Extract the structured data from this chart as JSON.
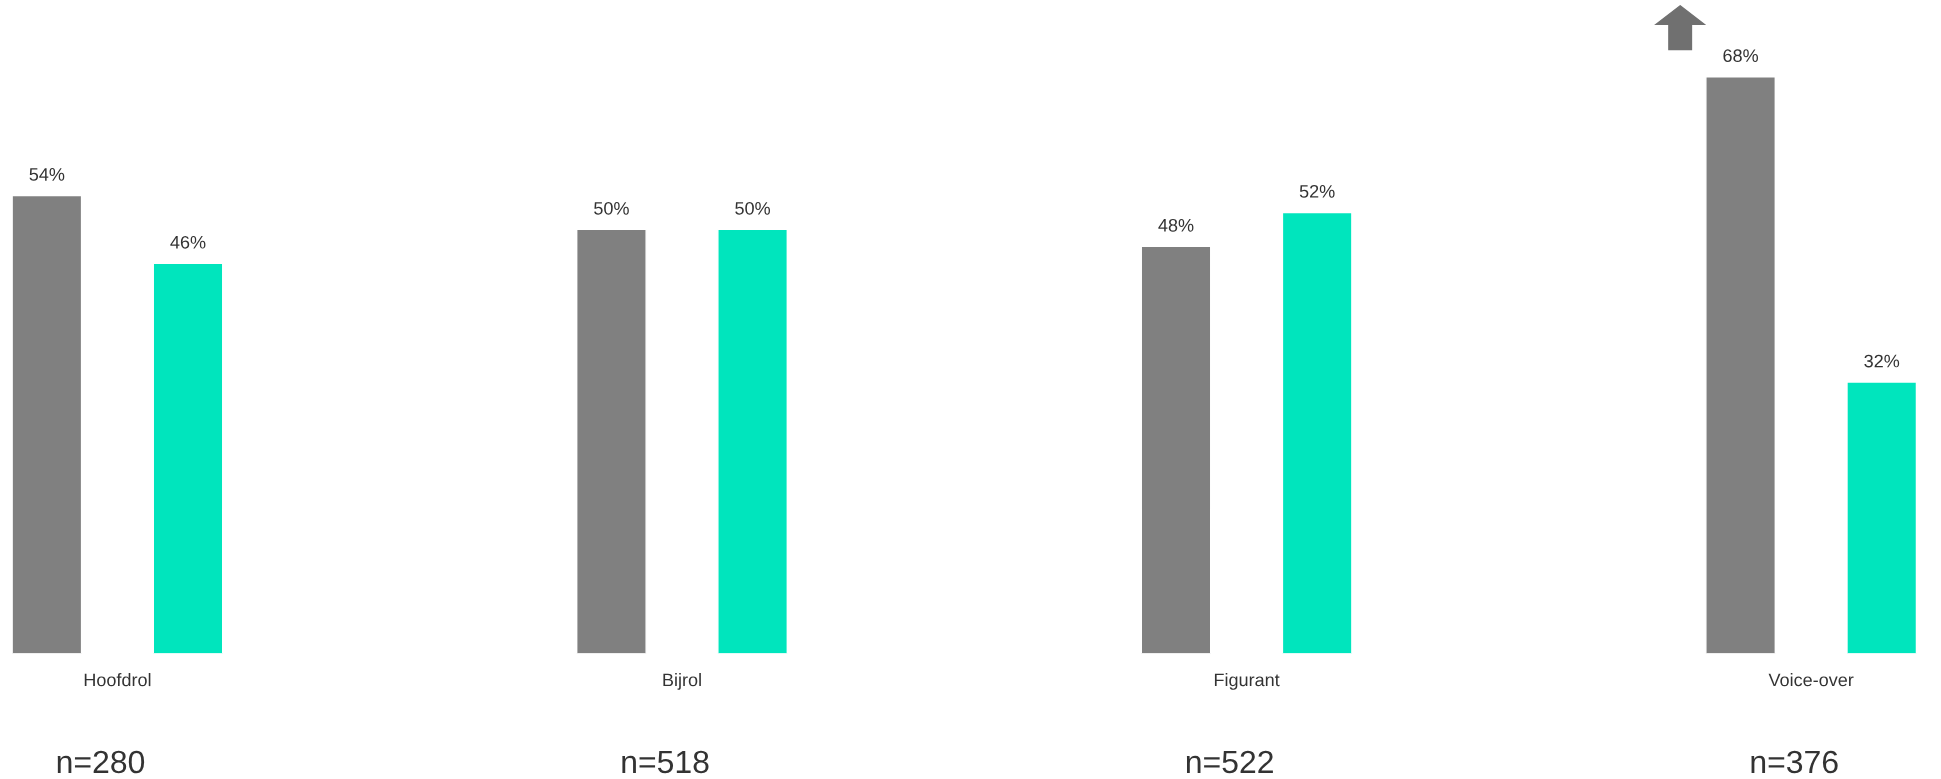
{
  "chart_data": {
    "type": "bar",
    "categories": [
      "Hoofdrol",
      "Bijrol",
      "Figurant",
      "Voice-over"
    ],
    "series": [
      {
        "color": "#808080",
        "values": [
          54,
          50,
          48,
          68
        ],
        "value_labels": [
          "54%",
          "50%",
          "48%",
          "68%"
        ]
      },
      {
        "color": "#00e5bd",
        "values": [
          46,
          50,
          52,
          32
        ],
        "value_labels": [
          "46%",
          "50%",
          "52%",
          "32%"
        ]
      }
    ],
    "grid": false,
    "legend": false,
    "annotations": [
      "n=280",
      "n=518",
      "n=522",
      "n=376"
    ]
  }
}
